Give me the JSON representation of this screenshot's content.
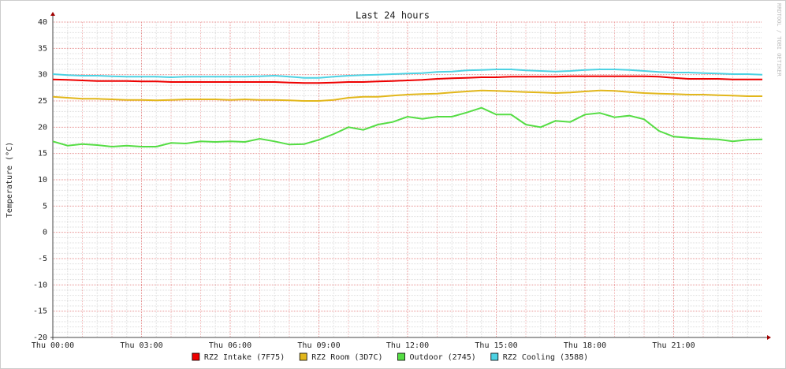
{
  "chart_data": {
    "type": "line",
    "title": "Last 24 hours",
    "y_label": "Temperature (°C)",
    "watermark": "RRDTOOL / TOBI OETIKER",
    "x": [
      0,
      0.5,
      1,
      1.5,
      2,
      2.5,
      3,
      3.5,
      4,
      4.5,
      5,
      5.5,
      6,
      6.5,
      7,
      7.5,
      8,
      8.5,
      9,
      9.5,
      10,
      10.5,
      11,
      11.5,
      12,
      12.5,
      13,
      13.5,
      14,
      14.5,
      15,
      15.5,
      16,
      16.5,
      17,
      17.5,
      18,
      18.5,
      19,
      19.5,
      20,
      20.5,
      21,
      21.5,
      22,
      22.5,
      23,
      23.5,
      24
    ],
    "xlim": [
      0,
      24
    ],
    "xticks": [
      {
        "value": 0,
        "label": "Thu 00:00"
      },
      {
        "value": 3,
        "label": "Thu 03:00"
      },
      {
        "value": 6,
        "label": "Thu 06:00"
      },
      {
        "value": 9,
        "label": "Thu 09:00"
      },
      {
        "value": 12,
        "label": "Thu 12:00"
      },
      {
        "value": 15,
        "label": "Thu 15:00"
      },
      {
        "value": 18,
        "label": "Thu 18:00"
      },
      {
        "value": 21,
        "label": "Thu 21:00"
      }
    ],
    "ylim": [
      -20,
      40
    ],
    "yticks": [
      -20,
      -15,
      -10,
      -5,
      0,
      5,
      10,
      15,
      20,
      25,
      30,
      35,
      40
    ],
    "grid": true,
    "minor_grid": true,
    "legend": "bottom",
    "series": [
      {
        "name": "RZ2 Intake (7F75)",
        "color": "#ee0000",
        "values": [
          29.1,
          29,
          28.9,
          28.8,
          28.8,
          28.8,
          28.7,
          28.7,
          28.6,
          28.6,
          28.6,
          28.6,
          28.6,
          28.6,
          28.6,
          28.6,
          28.5,
          28.4,
          28.4,
          28.5,
          28.6,
          28.6,
          28.7,
          28.8,
          28.9,
          29,
          29.2,
          29.3,
          29.4,
          29.5,
          29.5,
          29.6,
          29.6,
          29.6,
          29.6,
          29.7,
          29.7,
          29.7,
          29.7,
          29.7,
          29.7,
          29.6,
          29.4,
          29.2,
          29.2,
          29.2,
          29.1,
          29.1,
          29.1
        ]
      },
      {
        "name": "RZ2 Room (3D7C)",
        "color": "#e2b71c",
        "values": [
          25.8,
          25.6,
          25.4,
          25.4,
          25.3,
          25.2,
          25.2,
          25.1,
          25.2,
          25.3,
          25.3,
          25.3,
          25.2,
          25.3,
          25.2,
          25.2,
          25.1,
          25,
          25,
          25.2,
          25.6,
          25.8,
          25.8,
          26,
          26.2,
          26.3,
          26.4,
          26.6,
          26.8,
          27,
          26.9,
          26.8,
          26.7,
          26.6,
          26.5,
          26.6,
          26.8,
          27,
          26.9,
          26.7,
          26.5,
          26.4,
          26.3,
          26.2,
          26.2,
          26.1,
          26,
          25.9,
          25.9
        ]
      },
      {
        "name": "Outdoor (2745)",
        "color": "#55dd44",
        "values": [
          17.3,
          16.5,
          16.8,
          16.6,
          16.3,
          16.5,
          16.3,
          16.3,
          17,
          16.9,
          17.3,
          17.2,
          17.3,
          17.2,
          17.8,
          17.3,
          16.7,
          16.8,
          17.6,
          18.7,
          20,
          19.5,
          20.5,
          21,
          22,
          21.6,
          22,
          22,
          22.8,
          23.7,
          22.4,
          22.4,
          20.5,
          20,
          21.2,
          21,
          22.4,
          22.7,
          21.9,
          22.2,
          21.5,
          19.3,
          18.2,
          18,
          17.8,
          17.7,
          17.3,
          17.6,
          17.7
        ]
      },
      {
        "name": "RZ2 Cooling (3588)",
        "color": "#4dd2e3",
        "values": [
          30.1,
          29.9,
          29.8,
          29.8,
          29.7,
          29.6,
          29.6,
          29.6,
          29.5,
          29.6,
          29.6,
          29.6,
          29.6,
          29.6,
          29.7,
          29.8,
          29.6,
          29.4,
          29.4,
          29.6,
          29.8,
          29.9,
          30,
          30.1,
          30.2,
          30.3,
          30.5,
          30.6,
          30.8,
          30.9,
          31,
          31,
          30.8,
          30.7,
          30.6,
          30.7,
          30.9,
          31,
          31,
          30.9,
          30.7,
          30.5,
          30.4,
          30.4,
          30.3,
          30.2,
          30.1,
          30.1,
          30
        ]
      }
    ]
  }
}
